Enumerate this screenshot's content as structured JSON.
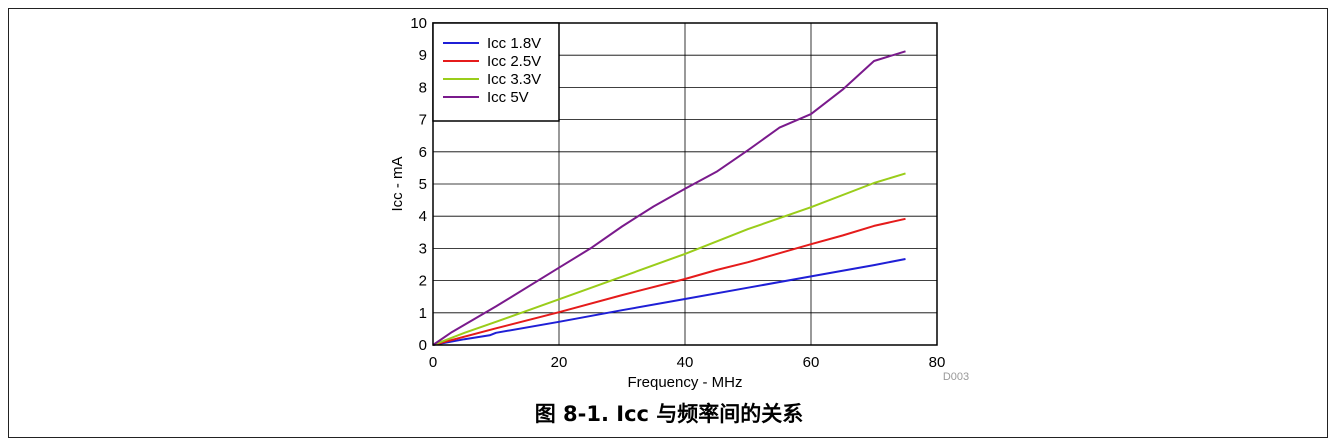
{
  "caption": "图 8-1. Icc 与频率间的关系",
  "chart_data": {
    "type": "line",
    "title": "",
    "xlabel": "Frequency - MHz",
    "ylabel": "Icc - mA",
    "xlim": [
      0,
      80
    ],
    "ylim": [
      0,
      10
    ],
    "xticks": [
      "0",
      "20",
      "40",
      "60",
      "80"
    ],
    "yticks": [
      "0",
      "1",
      "2",
      "3",
      "4",
      "5",
      "6",
      "7",
      "8",
      "9",
      "10"
    ],
    "grid": true,
    "legend": "top-left",
    "figure_code": "D003",
    "series": [
      {
        "name": "Icc 1.8V",
        "color": "#1f1fd6",
        "x": [
          0,
          5,
          9,
          10,
          20,
          30,
          40,
          50,
          60,
          70,
          75
        ],
        "y": [
          0,
          0.18,
          0.3,
          0.38,
          0.72,
          1.08,
          1.43,
          1.78,
          2.13,
          2.48,
          2.67
        ]
      },
      {
        "name": "Icc 2.5V",
        "color": "#e51b1b",
        "x": [
          0,
          10,
          20,
          30,
          40,
          45,
          50,
          55,
          60,
          65,
          70,
          75
        ],
        "y": [
          0,
          0.52,
          1.02,
          1.55,
          2.05,
          2.33,
          2.57,
          2.85,
          3.13,
          3.4,
          3.7,
          3.92
        ]
      },
      {
        "name": "Icc 3.3V",
        "color": "#9acd1a",
        "x": [
          0,
          5,
          10,
          20,
          30,
          40,
          50,
          60,
          70,
          75
        ],
        "y": [
          0,
          0.38,
          0.72,
          1.42,
          2.12,
          2.83,
          3.6,
          4.28,
          5.03,
          5.33
        ]
      },
      {
        "name": "Icc 5V",
        "color": "#7a1a8c",
        "x": [
          0,
          3,
          10,
          20,
          25,
          30,
          35,
          40,
          45,
          50,
          55,
          60,
          65,
          70,
          75
        ],
        "y": [
          0,
          0.4,
          1.2,
          2.4,
          3.0,
          3.68,
          4.3,
          4.85,
          5.38,
          6.05,
          6.75,
          7.17,
          7.93,
          8.82,
          9.12
        ]
      }
    ]
  }
}
